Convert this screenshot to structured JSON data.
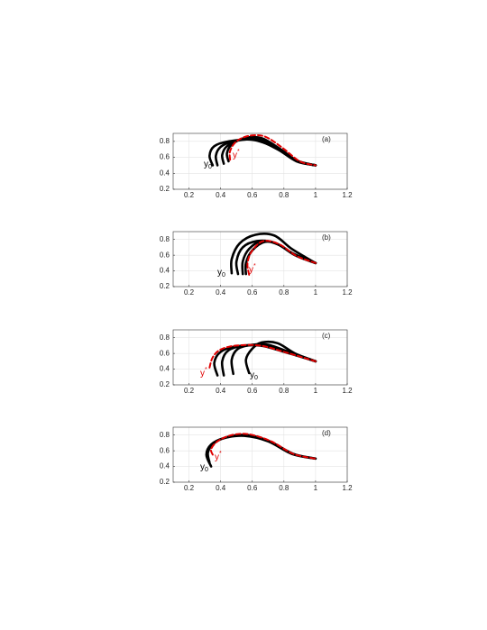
{
  "chart_data": [
    {
      "type": "line",
      "panel_label": "(a)",
      "xlim": [
        0.1,
        1.2
      ],
      "ylim": [
        0.2,
        0.9
      ],
      "xticks": [
        0.2,
        0.4,
        0.6,
        0.8,
        1,
        1.2
      ],
      "yticks": [
        0.2,
        0.4,
        0.6,
        0.8
      ],
      "grid": true,
      "series": [
        {
          "color": "#000000",
          "x": [
            0.35,
            0.33,
            0.36,
            0.45,
            0.6,
            0.75,
            0.88,
            1
          ],
          "y": [
            0.5,
            0.62,
            0.74,
            0.8,
            0.82,
            0.72,
            0.56,
            0.5
          ]
        },
        {
          "color": "#000000",
          "x": [
            0.38,
            0.37,
            0.4,
            0.48,
            0.62,
            0.76,
            0.88,
            1
          ],
          "y": [
            0.5,
            0.62,
            0.73,
            0.8,
            0.82,
            0.7,
            0.55,
            0.5
          ]
        },
        {
          "color": "#000000",
          "x": [
            0.42,
            0.41,
            0.44,
            0.52,
            0.64,
            0.77,
            0.89,
            1
          ],
          "y": [
            0.52,
            0.63,
            0.74,
            0.82,
            0.83,
            0.7,
            0.55,
            0.5
          ]
        },
        {
          "color": "#000000",
          "x": [
            0.45,
            0.44,
            0.47,
            0.55,
            0.66,
            0.78,
            0.89,
            1
          ],
          "y": [
            0.55,
            0.65,
            0.76,
            0.84,
            0.84,
            0.7,
            0.55,
            0.5
          ]
        },
        {
          "color": "#e00000",
          "dashed": true,
          "x": [
            0.46,
            0.46,
            0.5,
            0.58,
            0.68,
            0.79,
            0.9,
            1
          ],
          "y": [
            0.57,
            0.68,
            0.8,
            0.87,
            0.86,
            0.72,
            0.55,
            0.5
          ]
        }
      ],
      "annotations": [
        {
          "text": "y",
          "sub": "0",
          "color": "#000000"
        },
        {
          "text": "y",
          "sup": "*",
          "color": "#e00000"
        }
      ]
    },
    {
      "type": "line",
      "panel_label": "(b)",
      "xlim": [
        0.1,
        1.2
      ],
      "ylim": [
        0.2,
        0.9
      ],
      "xticks": [
        0.2,
        0.4,
        0.6,
        0.8,
        1,
        1.2
      ],
      "yticks": [
        0.2,
        0.4,
        0.6,
        0.8
      ],
      "grid": true,
      "series": [
        {
          "color": "#000000",
          "x": [
            0.47,
            0.47,
            0.52,
            0.62,
            0.74,
            0.85,
            1
          ],
          "y": [
            0.37,
            0.55,
            0.75,
            0.86,
            0.85,
            0.68,
            0.5
          ]
        },
        {
          "color": "#000000",
          "x": [
            0.51,
            0.5,
            0.54,
            0.63,
            0.74,
            0.86,
            1
          ],
          "y": [
            0.36,
            0.52,
            0.7,
            0.78,
            0.76,
            0.62,
            0.5
          ]
        },
        {
          "color": "#000000",
          "x": [
            0.54,
            0.54,
            0.58,
            0.66,
            0.76,
            0.87,
            1
          ],
          "y": [
            0.36,
            0.52,
            0.68,
            0.78,
            0.74,
            0.6,
            0.5
          ]
        },
        {
          "color": "#000000",
          "x": [
            0.56,
            0.56,
            0.6,
            0.68,
            0.77,
            0.88,
            1
          ],
          "y": [
            0.36,
            0.5,
            0.66,
            0.77,
            0.73,
            0.59,
            0.5
          ]
        },
        {
          "color": "#e00000",
          "dashed": true,
          "x": [
            0.58,
            0.57,
            0.6,
            0.67,
            0.77,
            0.88,
            1
          ],
          "y": [
            0.35,
            0.5,
            0.66,
            0.78,
            0.74,
            0.59,
            0.5
          ]
        }
      ],
      "annotations": [
        {
          "text": "y",
          "sub": "0",
          "color": "#000000"
        },
        {
          "text": "y",
          "sup": "*",
          "color": "#e00000"
        }
      ]
    },
    {
      "type": "line",
      "panel_label": "(c)",
      "xlim": [
        0.1,
        1.2
      ],
      "ylim": [
        0.2,
        0.9
      ],
      "xticks": [
        0.2,
        0.4,
        0.6,
        0.8,
        1,
        1.2
      ],
      "yticks": [
        0.2,
        0.4,
        0.6,
        0.8
      ],
      "grid": true,
      "series": [
        {
          "color": "#000000",
          "x": [
            0.38,
            0.36,
            0.4,
            0.5,
            0.65,
            0.8,
            1
          ],
          "y": [
            0.32,
            0.48,
            0.62,
            0.69,
            0.7,
            0.62,
            0.5
          ]
        },
        {
          "color": "#000000",
          "x": [
            0.42,
            0.41,
            0.45,
            0.55,
            0.68,
            0.82,
            1
          ],
          "y": [
            0.32,
            0.5,
            0.64,
            0.7,
            0.7,
            0.62,
            0.5
          ]
        },
        {
          "color": "#000000",
          "x": [
            0.48,
            0.47,
            0.51,
            0.6,
            0.7,
            0.83,
            1
          ],
          "y": [
            0.34,
            0.52,
            0.66,
            0.71,
            0.71,
            0.62,
            0.5
          ]
        },
        {
          "color": "#000000",
          "x": [
            0.58,
            0.56,
            0.6,
            0.66,
            0.76,
            0.87,
            1
          ],
          "y": [
            0.35,
            0.52,
            0.66,
            0.74,
            0.73,
            0.6,
            0.5
          ]
        },
        {
          "color": "#e00000",
          "dashed": true,
          "x": [
            0.33,
            0.35,
            0.4,
            0.5,
            0.65,
            0.8,
            1
          ],
          "y": [
            0.42,
            0.55,
            0.65,
            0.7,
            0.7,
            0.62,
            0.5
          ]
        }
      ],
      "annotations": [
        {
          "text": "y",
          "sup": "*",
          "color": "#e00000"
        },
        {
          "text": "y",
          "sub": "0",
          "color": "#000000"
        }
      ]
    },
    {
      "type": "line",
      "panel_label": "(d)",
      "xlim": [
        0.1,
        1.2
      ],
      "ylim": [
        0.2,
        0.9
      ],
      "xticks": [
        0.2,
        0.4,
        0.6,
        0.8,
        1,
        1.2
      ],
      "yticks": [
        0.2,
        0.4,
        0.6,
        0.8
      ],
      "grid": true,
      "series": [
        {
          "color": "#000000",
          "x": [
            0.34,
            0.31,
            0.34,
            0.42,
            0.55,
            0.7,
            0.85,
            1
          ],
          "y": [
            0.4,
            0.55,
            0.68,
            0.76,
            0.79,
            0.72,
            0.56,
            0.5
          ]
        },
        {
          "color": "#000000",
          "x": [
            0.33,
            0.32,
            0.36,
            0.45,
            0.57,
            0.71,
            0.86,
            1
          ],
          "y": [
            0.45,
            0.58,
            0.7,
            0.78,
            0.8,
            0.72,
            0.56,
            0.5
          ]
        },
        {
          "color": "#e00000",
          "dashed": true,
          "x": [
            0.35,
            0.34,
            0.38,
            0.47,
            0.58,
            0.72,
            0.86,
            1
          ],
          "y": [
            0.55,
            0.62,
            0.72,
            0.8,
            0.81,
            0.72,
            0.56,
            0.5
          ]
        }
      ],
      "annotations": [
        {
          "text": "y",
          "sub": "0",
          "color": "#000000"
        },
        {
          "text": "y",
          "sup": "*",
          "color": "#e00000"
        }
      ]
    }
  ]
}
